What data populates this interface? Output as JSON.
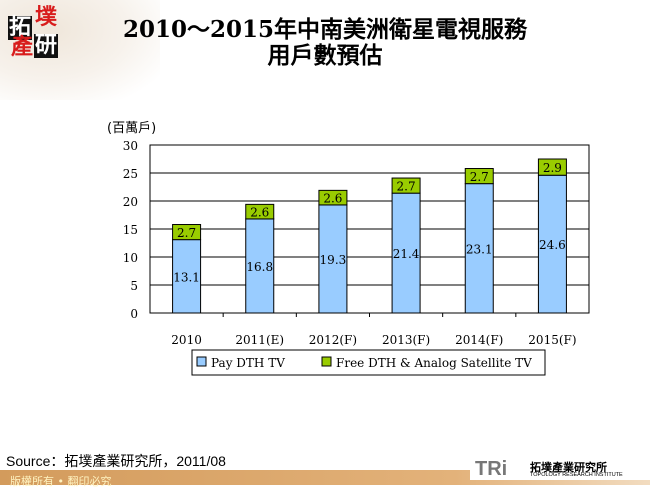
{
  "logo": {
    "chars": [
      "拓",
      "墣",
      "產",
      "研"
    ]
  },
  "title": {
    "line1": "2010～2015年中南美洲衛星電視服務",
    "line2": "用戶數預估"
  },
  "chart_data": {
    "type": "bar",
    "stacked": true,
    "ylabel": "(百萬戶)",
    "ylim": [
      0,
      30
    ],
    "yticks": [
      0,
      5,
      10,
      15,
      20,
      25,
      30
    ],
    "grid": true,
    "legend_position": "bottom",
    "categories": [
      "2010",
      "2011(E)",
      "2012(F)",
      "2013(F)",
      "2014(F)",
      "2015(F)"
    ],
    "series": [
      {
        "name": "Pay DTH TV",
        "color": "#99ccff",
        "values": [
          13.1,
          16.8,
          19.3,
          21.4,
          23.1,
          24.6
        ]
      },
      {
        "name": "Free DTH & Analog Satellite TV",
        "color": "#99cc00",
        "values": [
          2.7,
          2.6,
          2.6,
          2.7,
          2.7,
          2.9
        ]
      }
    ]
  },
  "source": "Source：拓墣產業研究所，2011/08",
  "footer": {
    "copyright": "版權所有 • 翻印必究",
    "brand": "TRi",
    "brand_cn": "拓墣產業研究所",
    "brand_en": "TOPOLOGY RESEARCH INSTITUTE"
  }
}
